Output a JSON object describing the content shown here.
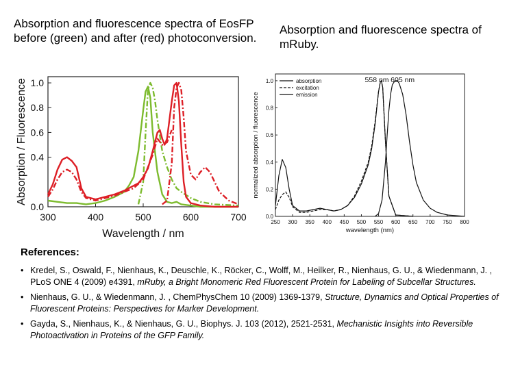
{
  "slide": {
    "title_left": "Absorption and fluorescence spectra of EosFP before (green) and after (red) photoconversion.",
    "title_right": "Absorption and fluorescence spectra of mRuby."
  },
  "chart_data": [
    {
      "type": "line",
      "title": "",
      "xlabel": "Wavelength / nm",
      "ylabel": "Absorption / Fluorescence",
      "xlim": [
        300,
        700
      ],
      "ylim": [
        0,
        1.05
      ],
      "xticks": [
        "300",
        "400",
        "500",
        "600",
        "700"
      ],
      "yticks": [
        "0.0",
        "0.4",
        "0.6",
        "0.8",
        "1.0"
      ],
      "colors": {
        "green": "#7dbb2e",
        "red": "#dd1f26"
      },
      "series": [
        {
          "color": "green",
          "style": "solid",
          "x": [
            300,
            320,
            340,
            360,
            380,
            400,
            420,
            440,
            460,
            470,
            480,
            490,
            500,
            505,
            510,
            515,
            520,
            530,
            540,
            550,
            560,
            570,
            580,
            600,
            620,
            650,
            700
          ],
          "y": [
            0.05,
            0.04,
            0.03,
            0.03,
            0.02,
            0.03,
            0.05,
            0.08,
            0.12,
            0.17,
            0.24,
            0.45,
            0.78,
            0.93,
            0.97,
            0.88,
            0.6,
            0.28,
            0.1,
            0.04,
            0.03,
            0.04,
            0.02,
            0.01,
            0.0,
            0.0,
            0.0
          ]
        },
        {
          "color": "green",
          "style": "dashdot",
          "x": [
            490,
            500,
            505,
            510,
            515,
            520,
            525,
            530,
            540,
            550,
            560,
            570,
            580,
            600,
            620,
            650,
            700
          ],
          "y": [
            0.02,
            0.2,
            0.6,
            0.95,
            1.0,
            0.96,
            0.85,
            0.7,
            0.45,
            0.32,
            0.22,
            0.15,
            0.12,
            0.07,
            0.04,
            0.02,
            0.01
          ]
        },
        {
          "color": "red",
          "style": "solid",
          "x": [
            300,
            310,
            320,
            330,
            340,
            350,
            360,
            370,
            380,
            400,
            420,
            440,
            460,
            480,
            490,
            500,
            510,
            520,
            530,
            535,
            540,
            545,
            550,
            560,
            565,
            570,
            575,
            580,
            585,
            590,
            600,
            620,
            650,
            700
          ],
          "y": [
            0.1,
            0.18,
            0.3,
            0.38,
            0.4,
            0.37,
            0.32,
            0.15,
            0.08,
            0.06,
            0.08,
            0.1,
            0.13,
            0.17,
            0.19,
            0.24,
            0.31,
            0.45,
            0.6,
            0.62,
            0.55,
            0.5,
            0.55,
            0.85,
            0.98,
            1.0,
            0.85,
            0.5,
            0.2,
            0.08,
            0.03,
            0.01,
            0.0,
            0.0
          ]
        },
        {
          "color": "red",
          "style": "dashdot",
          "x": [
            540,
            550,
            560,
            565,
            570,
            575,
            580,
            585,
            590,
            600,
            610,
            620,
            630,
            640,
            650,
            660,
            680,
            700
          ],
          "y": [
            0.02,
            0.05,
            0.35,
            0.8,
            0.96,
            1.0,
            0.94,
            0.72,
            0.45,
            0.26,
            0.22,
            0.28,
            0.32,
            0.28,
            0.2,
            0.12,
            0.05,
            0.02
          ]
        },
        {
          "color": "red",
          "style": "dashdot",
          "x": [
            300,
            310,
            320,
            330,
            340,
            350,
            360,
            370,
            380,
            400,
            420,
            440,
            460,
            480,
            500,
            520,
            530,
            540,
            550,
            560
          ],
          "y": [
            0.08,
            0.14,
            0.22,
            0.28,
            0.3,
            0.28,
            0.22,
            0.12,
            0.07,
            0.05,
            0.07,
            0.09,
            0.12,
            0.15,
            0.22,
            0.42,
            0.55,
            0.5,
            0.52,
            0.62
          ]
        }
      ]
    },
    {
      "type": "line",
      "title": "",
      "xlabel": "wavelength (nm)",
      "ylabel": "normalized absorption / fluorescence",
      "xlim": [
        250,
        800
      ],
      "ylim": [
        0,
        1.05
      ],
      "xticks": [
        "250",
        "300",
        "350",
        "400",
        "450",
        "500",
        "550",
        "600",
        "650",
        "700",
        "750",
        "800"
      ],
      "yticks": [
        "0.0",
        "0.2",
        "0.4",
        "0.6",
        "0.8",
        "1.0"
      ],
      "legend": {
        "position": "top-left",
        "entries": [
          "absorption",
          "excitation",
          "emission"
        ]
      },
      "annotations": [
        "558 nm",
        "605 nm"
      ],
      "series": [
        {
          "name": "absorption",
          "style": "solid",
          "x": [
            250,
            260,
            270,
            280,
            290,
            300,
            320,
            340,
            360,
            380,
            400,
            420,
            440,
            460,
            480,
            500,
            520,
            530,
            540,
            550,
            555,
            558,
            562,
            565,
            570,
            580,
            600,
            650
          ],
          "y": [
            0.08,
            0.3,
            0.42,
            0.36,
            0.2,
            0.08,
            0.04,
            0.04,
            0.05,
            0.06,
            0.05,
            0.04,
            0.05,
            0.08,
            0.14,
            0.24,
            0.38,
            0.5,
            0.68,
            0.92,
            0.99,
            1.0,
            0.95,
            0.8,
            0.55,
            0.15,
            0.01,
            0.0
          ]
        },
        {
          "name": "excitation",
          "style": "dashed",
          "x": [
            250,
            260,
            270,
            280,
            290,
            300,
            320,
            340,
            360,
            380,
            400,
            420,
            440,
            460,
            480,
            500,
            520,
            530,
            540,
            550,
            555,
            558,
            562,
            565,
            570,
            580,
            600,
            650
          ],
          "y": [
            0.05,
            0.12,
            0.16,
            0.18,
            0.14,
            0.07,
            0.03,
            0.03,
            0.04,
            0.05,
            0.05,
            0.04,
            0.05,
            0.08,
            0.15,
            0.26,
            0.4,
            0.52,
            0.7,
            0.92,
            0.99,
            1.0,
            0.95,
            0.8,
            0.55,
            0.15,
            0.01,
            0.0
          ]
        },
        {
          "name": "emission",
          "style": "solid",
          "x": [
            540,
            550,
            560,
            570,
            575,
            580,
            585,
            590,
            595,
            600,
            605,
            610,
            620,
            630,
            640,
            650,
            660,
            680,
            700,
            720,
            750,
            800
          ],
          "y": [
            0.0,
            0.02,
            0.12,
            0.4,
            0.6,
            0.78,
            0.9,
            0.97,
            0.99,
            1.0,
            1.0,
            0.98,
            0.9,
            0.75,
            0.55,
            0.38,
            0.25,
            0.12,
            0.06,
            0.03,
            0.01,
            0.0
          ]
        }
      ]
    }
  ],
  "references": {
    "heading": "References:",
    "items": [
      {
        "text": "Kredel, S., Oswald, F., Nienhaus, K., Deuschle, K., Röcker, C., Wolff, M., Heilker, R., Nienhaus, G. U., & Wiedenmann, J. , PLoS ONE 4 (2009) e4391, ",
        "italic": "mRuby, a Bright Monomeric Red Fluorescent Protein for Labeling of Subcellar Structures."
      },
      {
        "text": "Nienhaus, G. U., & Wiedenmann, J. , ChemPhysChem 10 (2009) 1369-1379, ",
        "italic": "Structure, Dynamics and Optical Properties of Fluorescent Proteins: Perspectives for Marker Development."
      },
      {
        "text": "Gayda, S., Nienhaus, K., & Nienhaus, G. U., Biophys. J. 103 (2012), 2521-2531, ",
        "italic": "Mechanistic Insights into Reversible Photoactivation in Proteins of the GFP Family."
      }
    ]
  }
}
